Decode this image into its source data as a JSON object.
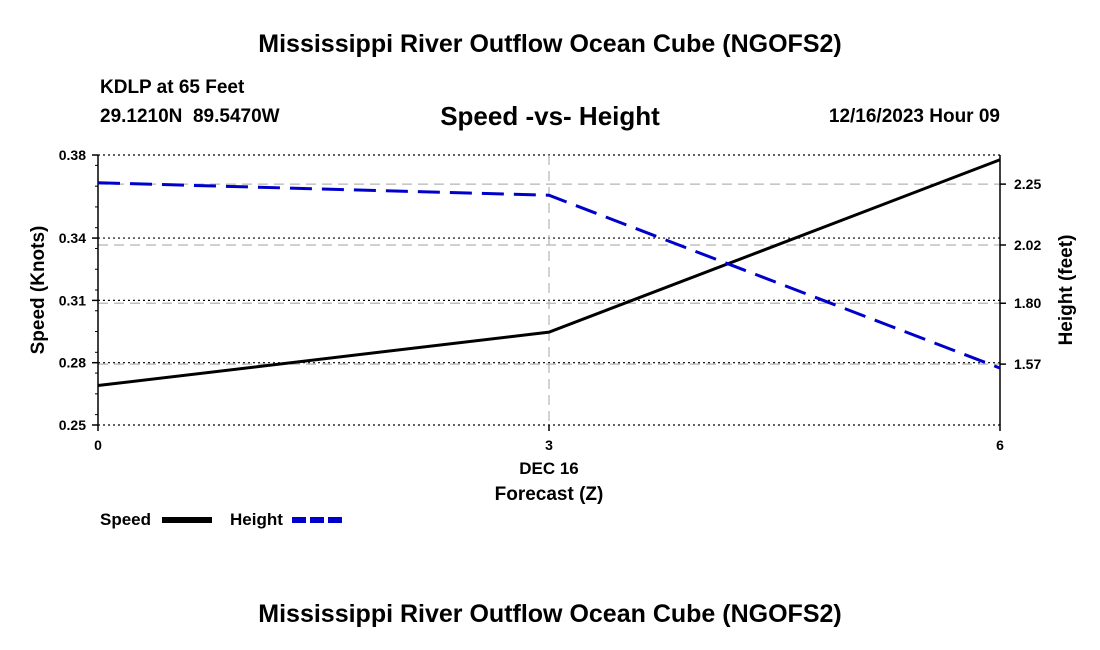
{
  "chart_data": {
    "type": "line",
    "title": "Mississippi River Outflow Ocean Cube (NGOFS2)",
    "subtitle": "Speed -vs- Height",
    "station": {
      "name": "KDLP at 65 Feet",
      "location": "29.1210N  89.5470W"
    },
    "datetime": "12/16/2023 Hour 09",
    "x": [
      0,
      3,
      6
    ],
    "x_ticks": [
      "0",
      "3",
      "6"
    ],
    "x_date_label": "DEC 16",
    "xlabel": "Forecast (Z)",
    "xlim": [
      0,
      6
    ],
    "ylabel_left": "Speed (Knots)",
    "ylim_left": [
      0.25,
      0.38
    ],
    "yticks_left": [
      "0.38",
      "0.34",
      "0.31",
      "0.28",
      "0.25"
    ],
    "ylabel_right": "Height (feet)",
    "ylim_right": [
      1.34,
      2.36
    ],
    "yticks_right": [
      "2.25",
      "2.02",
      "1.80",
      "1.57"
    ],
    "series": [
      {
        "name": "Speed",
        "axis": "left",
        "color": "#000000",
        "style": "solid",
        "values": [
          0.269,
          0.2947,
          0.3777
        ]
      },
      {
        "name": "Height",
        "axis": "right",
        "color": "#0000cc",
        "style": "dashed",
        "values": [
          2.255,
          2.208,
          1.555
        ]
      }
    ],
    "legend": [
      "Speed",
      "Height"
    ],
    "grid": true
  },
  "footer_title": "Mississippi River Outflow Ocean Cube (NGOFS2)"
}
